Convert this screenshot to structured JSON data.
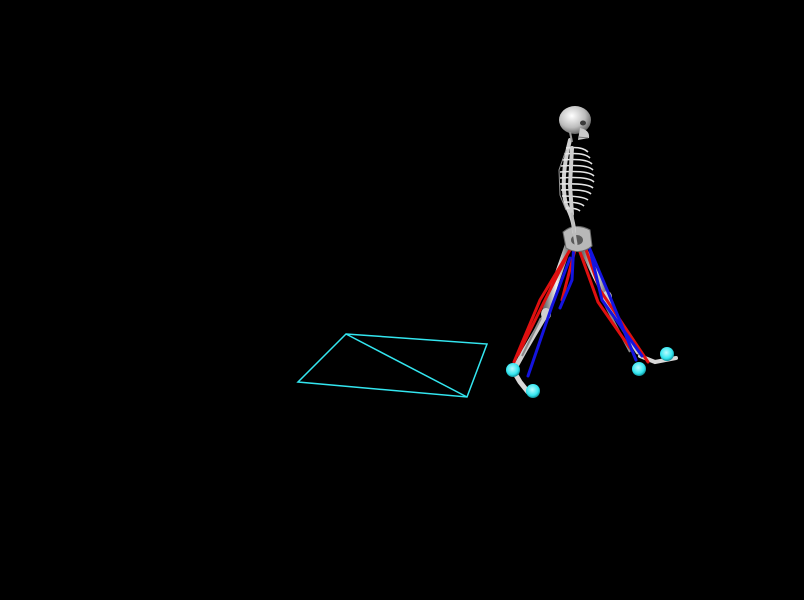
{
  "scene": {
    "background_color": "#000000",
    "force_plate_color": "#33e6f0",
    "marker_color": "#33e6f0",
    "bone_color": "#d8d8d8",
    "muscle_right_color": "#e01010",
    "muscle_left_color": "#1414e0",
    "skeleton_icon": "walking-skeleton",
    "force_plate_icon": "force-plate-outline",
    "marker_icon": "sphere-marker"
  }
}
